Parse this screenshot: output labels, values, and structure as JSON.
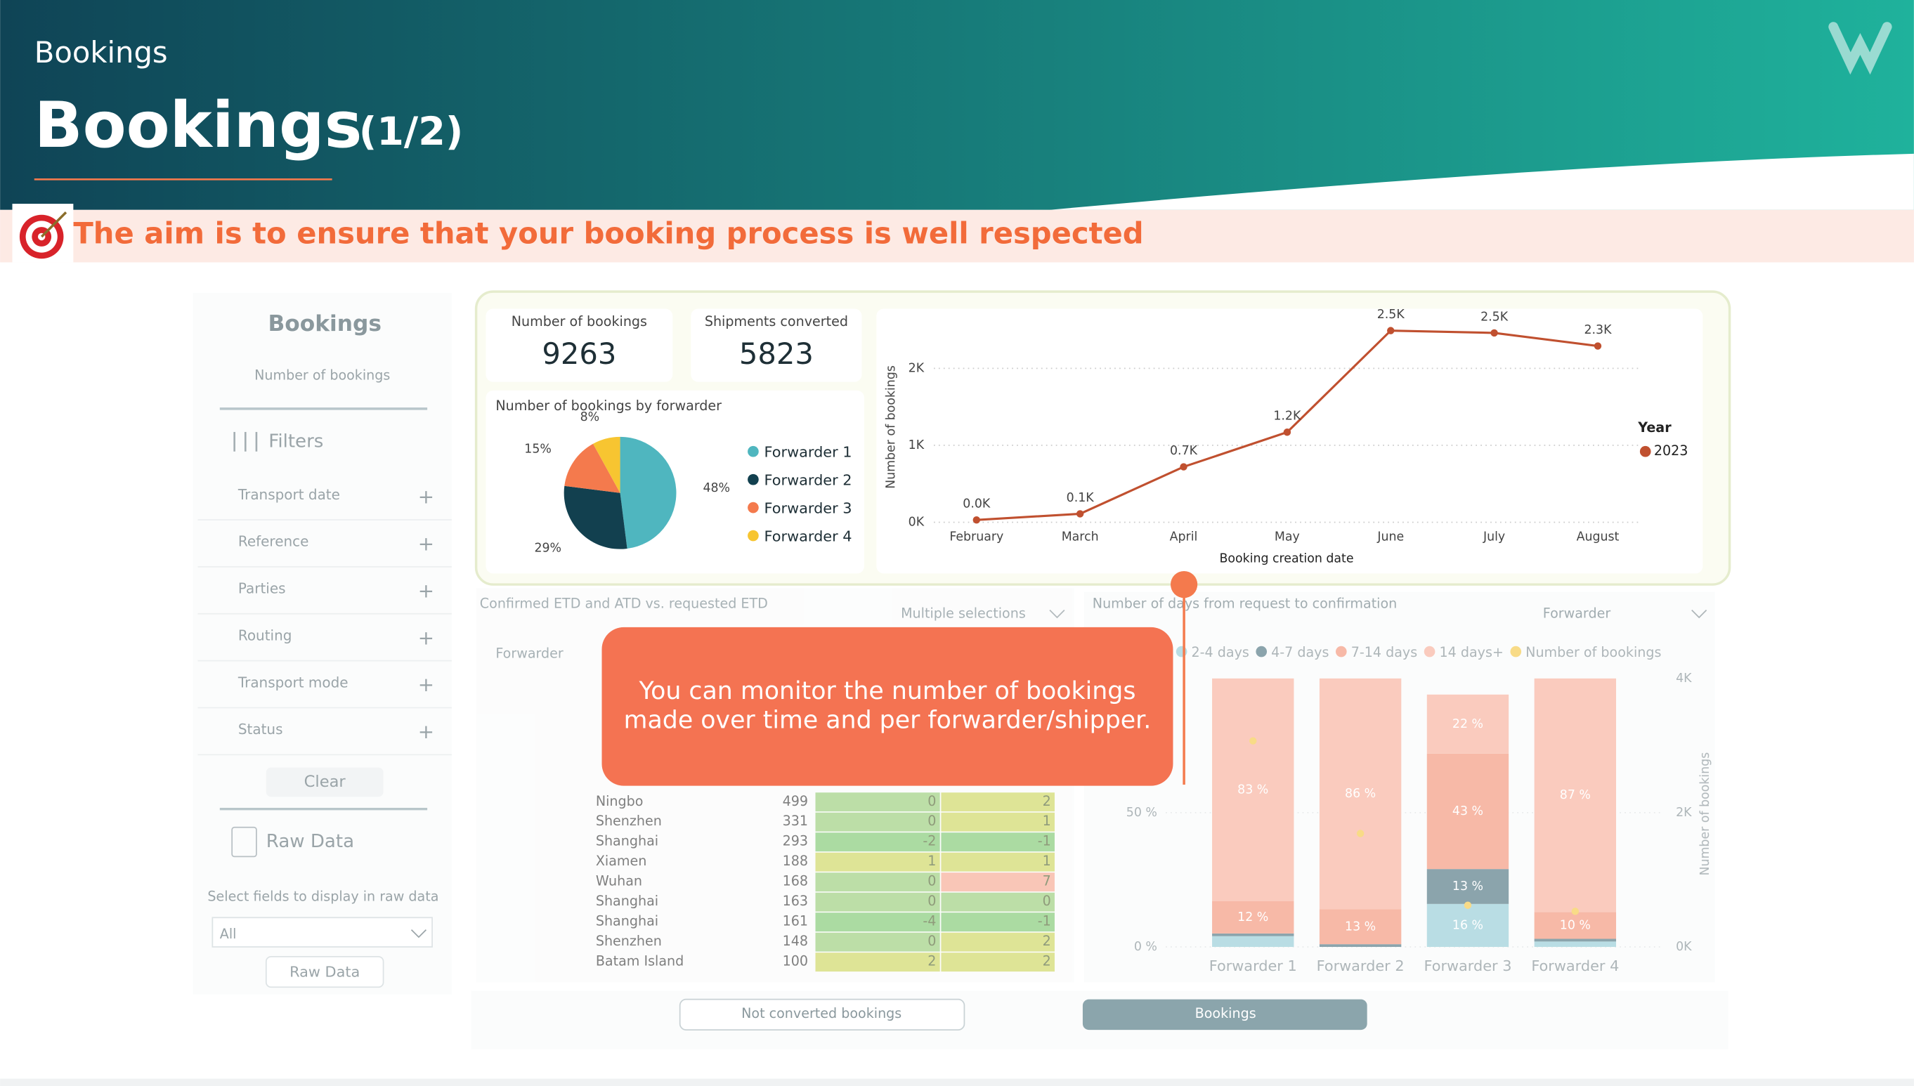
{
  "header": {
    "section": "Bookings",
    "title": "Bookings",
    "part": "(1/2)"
  },
  "aim": "The aim is to ensure that your booking process is well respected",
  "sidebar": {
    "title": "Bookings",
    "subtitle": "Number of bookings",
    "filters_label": "Filters",
    "filters": [
      "Transport date",
      "Reference",
      "Parties",
      "Routing",
      "Transport mode",
      "Status"
    ],
    "clear": "Clear",
    "raw_data": "Raw Data",
    "select_label": "Select fields to display in raw data",
    "select_value": "All",
    "raw_button": "Raw Data"
  },
  "kpis": [
    {
      "label": "Number of bookings",
      "value": "9263"
    },
    {
      "label": "Shipments converted",
      "value": "5823"
    }
  ],
  "table": {
    "title": "Confirmed ETD and ATD vs. requested ETD",
    "selector": "Multiple selections",
    "header": "Forwarder",
    "rows": [
      [
        "Ningbo",
        499,
        0,
        2
      ],
      [
        "Shenzhen",
        331,
        0,
        1
      ],
      [
        "Shanghai",
        293,
        -2,
        -1
      ],
      [
        "Xiamen",
        188,
        1,
        1
      ],
      [
        "Wuhan",
        168,
        0,
        7
      ],
      [
        "Shanghai",
        163,
        0,
        0
      ],
      [
        "Shanghai",
        161,
        -4,
        -1
      ],
      [
        "Shenzhen",
        148,
        0,
        2
      ],
      [
        "Batam Island",
        100,
        2,
        2
      ]
    ]
  },
  "callout": {
    "lines": [
      "You can monitor the number of bookings",
      "made over time and per forwarder/shipper."
    ]
  },
  "tabs": [
    "Not converted bookings",
    "Bookings"
  ],
  "chart_data": [
    {
      "type": "pie",
      "title": "Number of bookings by forwarder",
      "categories": [
        "Forwarder 1",
        "Forwarder 2",
        "Forwarder 3",
        "Forwarder 4"
      ],
      "values": [
        48,
        29,
        15,
        8
      ],
      "value_labels": [
        "48%",
        "29%",
        "15%",
        "8%"
      ],
      "colors": [
        "#4fb6bf",
        "#12404f",
        "#f47a4d",
        "#f7c531"
      ]
    },
    {
      "type": "line",
      "ylabel": "Number of bookings",
      "xlabel": "Booking creation date",
      "legend_title": "Year",
      "x": [
        "February",
        "March",
        "April",
        "May",
        "June",
        "July",
        "August"
      ],
      "series": [
        {
          "name": "2023",
          "color": "#c0502f",
          "values": [
            0.03,
            0.11,
            0.72,
            1.17,
            2.49,
            2.46,
            2.29
          ],
          "value_labels": [
            "0.0K",
            "0.1K",
            "0.7K",
            "1.2K",
            "2.5K",
            "2.5K",
            "2.3K"
          ]
        }
      ],
      "ylim": [
        0,
        2.6
      ],
      "yticks": [
        {
          "value": 0,
          "label": "0K"
        },
        {
          "value": 1,
          "label": "1K"
        },
        {
          "value": 2,
          "label": "2K"
        }
      ],
      "grid": true
    },
    {
      "type": "bar",
      "stacked": true,
      "title": "Number of days from request to confirmation",
      "selector": "Forwarder",
      "y2label": "Number of bookings",
      "categories": [
        "Forwarder 1",
        "Forwarder 2",
        "Forwarder 3",
        "Forwarder 4"
      ],
      "series": [
        {
          "name": "2-4 days",
          "color": "#a8d5de",
          "values": [
            4,
            0,
            16,
            2
          ],
          "value_labels": [
            null,
            null,
            "16 %",
            null
          ]
        },
        {
          "name": "4-7 days",
          "color": "#6f8e98",
          "values": [
            1,
            1,
            13,
            1
          ],
          "value_labels": [
            null,
            null,
            "13 %",
            null
          ]
        },
        {
          "name": "7-14 days",
          "color": "#f6a891",
          "values": [
            12,
            13,
            43,
            10
          ],
          "value_labels": [
            "12 %",
            "13 %",
            "43 %",
            "10 %"
          ]
        },
        {
          "name": "14 days+",
          "color": "#f9bfae",
          "values": [
            83,
            86,
            22,
            87
          ],
          "value_labels": [
            "83 %",
            "86 %",
            "22 %",
            "87 %"
          ]
        },
        {
          "name": "Number of bookings",
          "axis": "y2",
          "color": "#f7d26a",
          "values": [
            3.07,
            1.69,
            0.62,
            0.53
          ]
        }
      ],
      "ylim": [
        0,
        100
      ],
      "yticks": [
        {
          "value": 0,
          "label": "0 %"
        },
        {
          "value": 50,
          "label": "50 %"
        }
      ],
      "y2lim": [
        0,
        4
      ],
      "y2ticks": [
        {
          "value": 0,
          "label": "0K"
        },
        {
          "value": 2,
          "label": "2K"
        },
        {
          "value": 4,
          "label": "4K"
        }
      ]
    }
  ]
}
